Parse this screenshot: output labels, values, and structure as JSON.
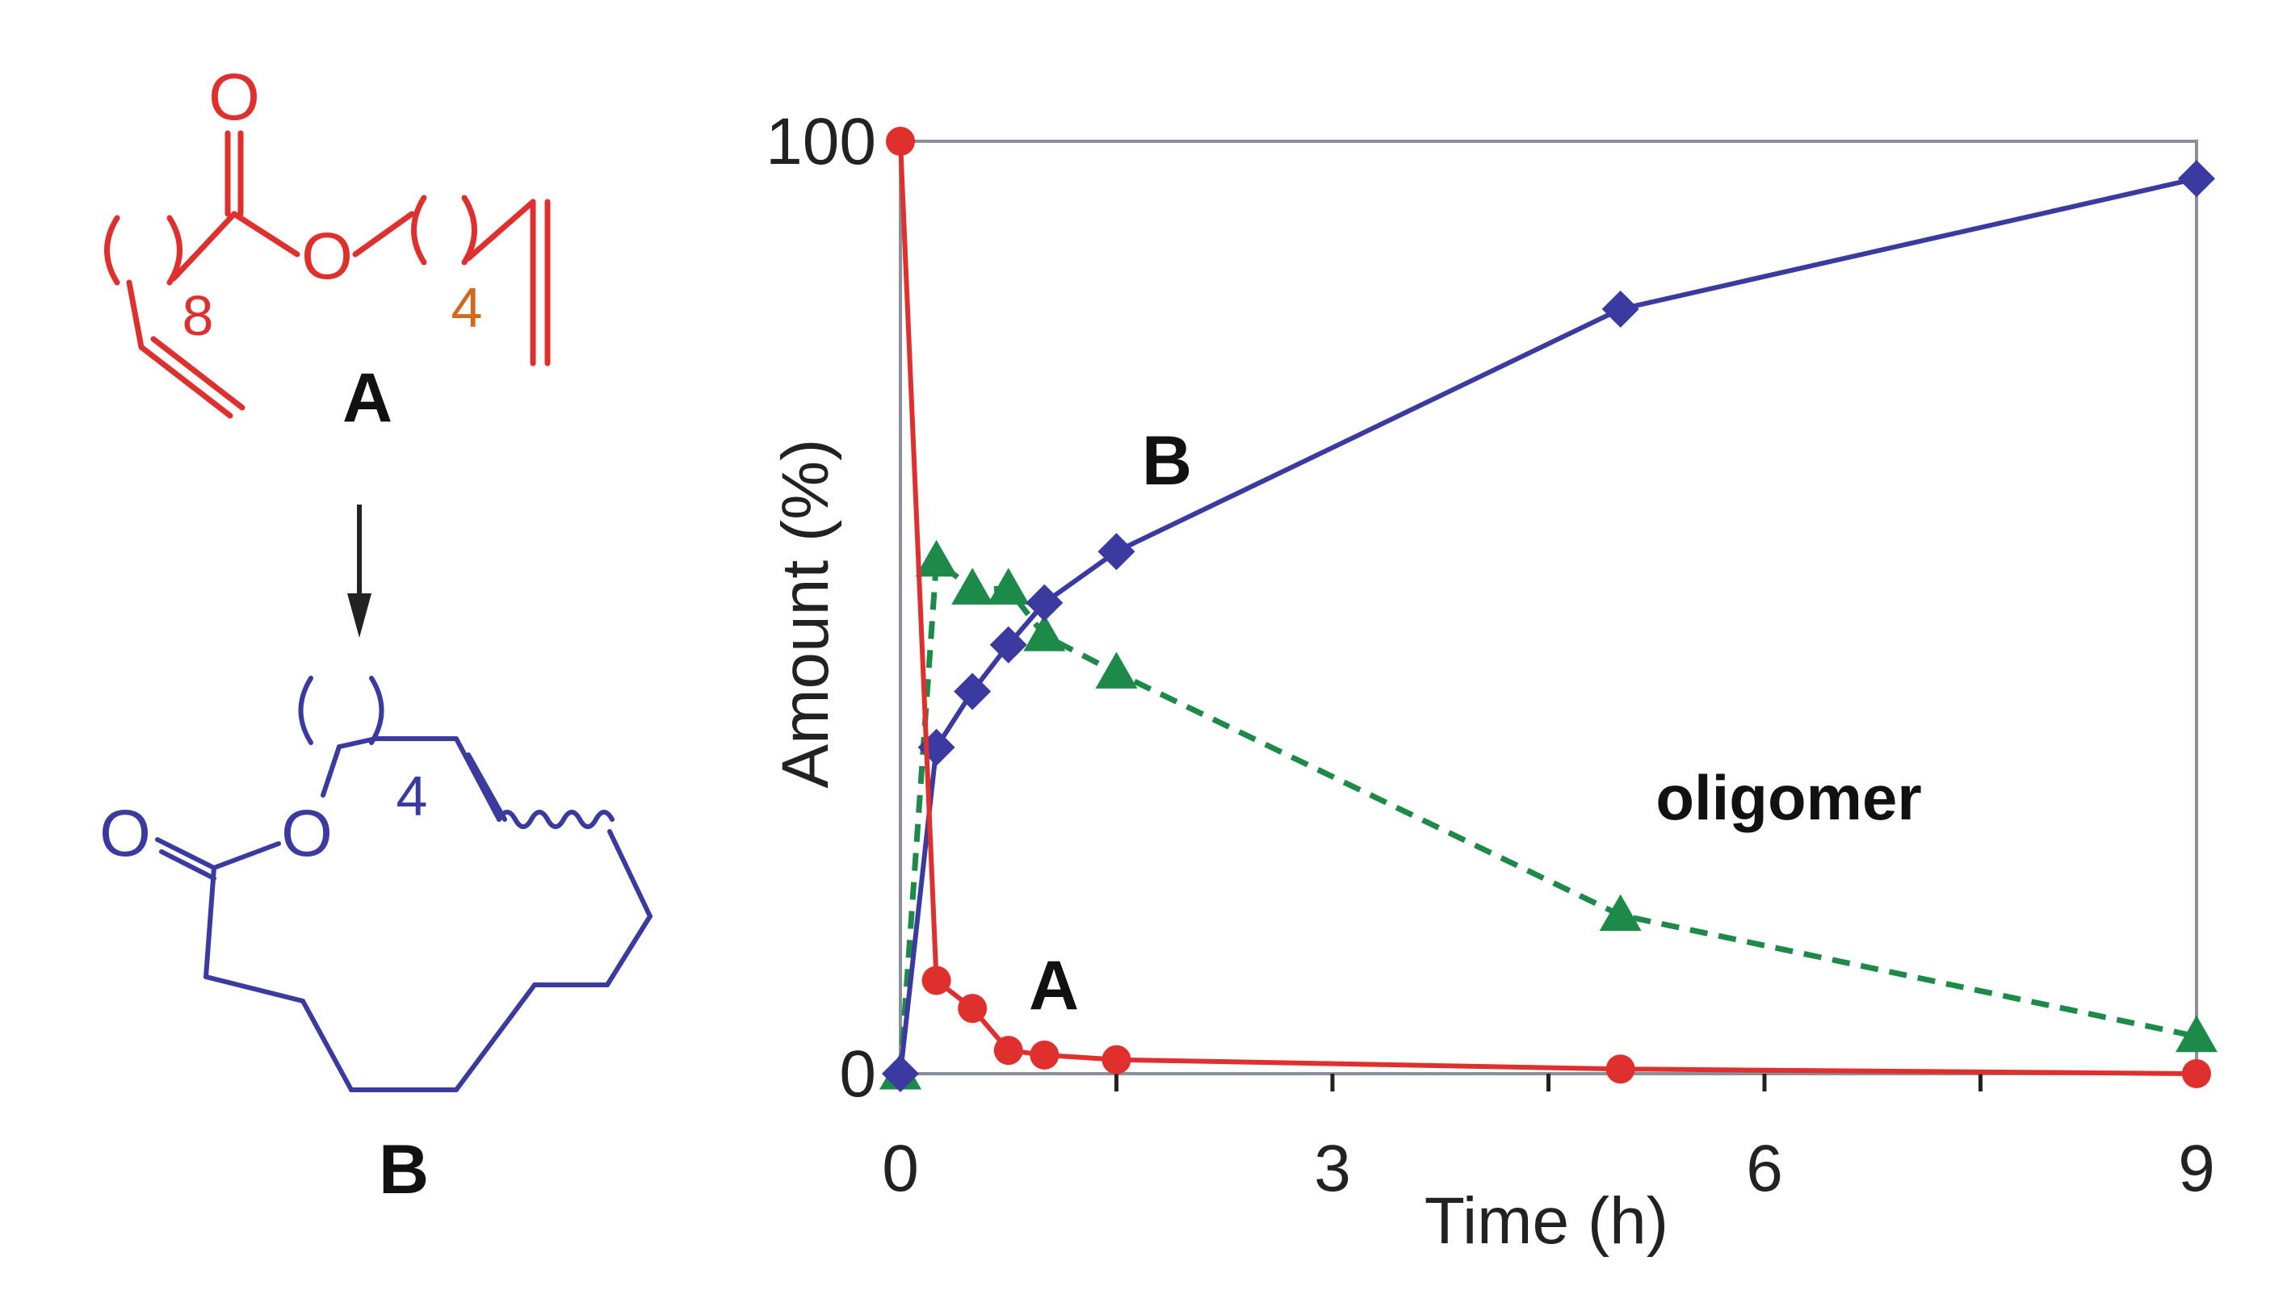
{
  "scheme": {
    "compound_a_label": "A",
    "compound_b_label": "B",
    "subscript_a_left": "8",
    "subscript_a_right": "4",
    "subscript_b": "4",
    "oxygen_symbol": "O",
    "colors": {
      "a": "#e0302d",
      "a_sub4": "#d2691e",
      "b": "#3a3aa0",
      "arrow": "#222222"
    }
  },
  "chart_data": {
    "type": "line",
    "xlabel": "Time (h)",
    "ylabel": "Amount (%)",
    "xlim": [
      0,
      9
    ],
    "ylim": [
      0,
      100
    ],
    "x_ticks": [
      0,
      3,
      6,
      9
    ],
    "x_minor_ticks": [
      1.5,
      4.5,
      7.5
    ],
    "y_ticks": [
      0,
      100
    ],
    "grid": false,
    "series": [
      {
        "name": "A",
        "label": "A",
        "color": "#e0302d",
        "marker": "circle",
        "linestyle": "solid",
        "x": [
          0,
          0.25,
          0.5,
          0.75,
          1.0,
          1.5,
          5,
          9
        ],
        "y": [
          100,
          10,
          7,
          2.5,
          2,
          1.5,
          0.5,
          0
        ]
      },
      {
        "name": "B",
        "label": "B",
        "color": "#3a3aa0",
        "marker": "diamond",
        "linestyle": "solid",
        "x": [
          0,
          0.25,
          0.5,
          0.75,
          1.0,
          1.5,
          5,
          9
        ],
        "y": [
          0,
          35,
          41,
          46,
          50.5,
          56,
          82,
          96
        ]
      },
      {
        "name": "oligomer",
        "label": "oligomer",
        "color": "#1e8a4a",
        "marker": "triangle",
        "linestyle": "dashed",
        "x": [
          0,
          0.25,
          0.5,
          0.75,
          1.0,
          1.5,
          5,
          9
        ],
        "y": [
          0,
          55,
          52,
          52,
          47,
          43,
          17,
          4
        ]
      }
    ]
  }
}
